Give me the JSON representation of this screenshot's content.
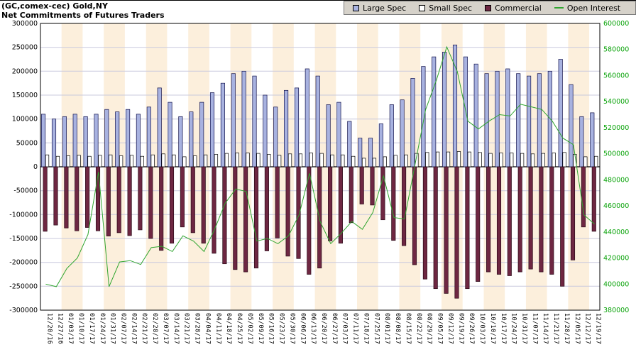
{
  "header": {
    "title": "(GC,comex-cec) Gold,NY",
    "subtitle": "Net Commitments of Futures Traders"
  },
  "legend": {
    "items": [
      {
        "label": "Large Spec",
        "color": "#a8b2e0",
        "type": "box"
      },
      {
        "label": "Small Spec",
        "color": "#ffffff",
        "type": "box"
      },
      {
        "label": "Commercial",
        "color": "#6e2742",
        "type": "box"
      },
      {
        "label": "Open Interest",
        "color": "#2fa52f",
        "type": "line"
      }
    ]
  },
  "colors": {
    "stripe": "#fcefdc",
    "grid": "#c9c9dd",
    "frame": "#000000",
    "legend_bg": "#d6d2ca",
    "large_spec": "#a8b2e0",
    "small_spec": "#ffffff",
    "commercial": "#6e2742",
    "open_interest": "#2fa52f",
    "right_axis_text": "#0aa30a"
  },
  "chart_data": {
    "type": "bar",
    "title": "(GC,comex-cec) Gold,NY",
    "subtitle": "Net Commitments of Futures Traders",
    "legend_position": "top-right",
    "grid": true,
    "categories": [
      "12/20/16",
      "12/27/16",
      "01/03/17",
      "01/10/17",
      "01/17/17",
      "01/24/17",
      "01/31/17",
      "02/07/17",
      "02/14/17",
      "02/21/17",
      "02/28/17",
      "03/07/17",
      "03/14/17",
      "03/21/17",
      "03/28/17",
      "04/04/17",
      "04/11/17",
      "04/18/17",
      "04/25/17",
      "05/02/17",
      "05/09/17",
      "05/16/17",
      "05/23/17",
      "05/30/17",
      "06/06/17",
      "06/13/17",
      "06/20/17",
      "06/27/17",
      "07/03/17",
      "07/11/17",
      "07/18/17",
      "07/25/17",
      "08/01/17",
      "08/08/17",
      "08/15/17",
      "08/22/17",
      "08/29/17",
      "09/05/17",
      "09/12/17",
      "09/19/17",
      "09/26/17",
      "10/03/17",
      "10/10/17",
      "10/17/17",
      "10/24/17",
      "10/31/17",
      "11/07/17",
      "11/14/17",
      "11/21/17",
      "11/28/17",
      "12/05/17",
      "12/12/17",
      "12/19/17"
    ],
    "series": [
      {
        "name": "Large Spec",
        "type": "bar",
        "axis": "left",
        "color": "#a8b2e0",
        "values": [
          110000,
          100000,
          105000,
          110000,
          105000,
          110000,
          120000,
          115000,
          120000,
          110000,
          125000,
          165000,
          135000,
          105000,
          115000,
          135000,
          155000,
          175000,
          195000,
          200000,
          190000,
          150000,
          125000,
          160000,
          165000,
          205000,
          190000,
          130000,
          135000,
          95000,
          60000,
          60000,
          90000,
          130000,
          140000,
          185000,
          210000,
          230000,
          240000,
          255000,
          230000,
          215000,
          195000,
          200000,
          205000,
          195000,
          190000,
          195000,
          200000,
          225000,
          172000,
          105000,
          113000
        ]
      },
      {
        "name": "Small Spec",
        "type": "bar",
        "axis": "left",
        "color": "#ffffff",
        "values": [
          25000,
          22000,
          23000,
          24000,
          22000,
          24000,
          25000,
          23000,
          24000,
          22000,
          25000,
          27000,
          25000,
          21000,
          23000,
          25000,
          26000,
          28000,
          29000,
          29000,
          28000,
          26000,
          24000,
          27000,
          27000,
          29000,
          28000,
          25000,
          25000,
          22000,
          18000,
          18000,
          21000,
          24000,
          25000,
          28000,
          30000,
          31000,
          31000,
          32000,
          31000,
          30000,
          28000,
          29000,
          29000,
          28000,
          27000,
          28000,
          29000,
          30000,
          26000,
          21000,
          22000
        ]
      },
      {
        "name": "Commercial",
        "type": "bar",
        "axis": "left",
        "color": "#6e2742",
        "values": [
          -135000,
          -122000,
          -128000,
          -134000,
          -127000,
          -134000,
          -145000,
          -138000,
          -144000,
          -132000,
          -150000,
          -175000,
          -160000,
          -126000,
          -138000,
          -160000,
          -181000,
          -203000,
          -215000,
          -220000,
          -212000,
          -176000,
          -149000,
          -187000,
          -192000,
          -225000,
          -212000,
          -155000,
          -160000,
          -117000,
          -78000,
          -80000,
          -111000,
          -154000,
          -165000,
          -205000,
          -235000,
          -255000,
          -265000,
          -275000,
          -255000,
          -240000,
          -220000,
          -225000,
          -228000,
          -220000,
          -214000,
          -220000,
          -225000,
          -250000,
          -195000,
          -126000,
          -135000
        ]
      },
      {
        "name": "Open Interest",
        "type": "line",
        "axis": "right",
        "color": "#2fa52f",
        "values": [
          400000,
          398000,
          412000,
          420000,
          438000,
          486000,
          398000,
          417000,
          418000,
          415000,
          428000,
          429000,
          425000,
          437000,
          433000,
          425000,
          442000,
          462000,
          473000,
          471000,
          433000,
          435000,
          431000,
          437000,
          453000,
          485000,
          448000,
          431000,
          439000,
          448000,
          442000,
          455000,
          483000,
          451000,
          450000,
          492000,
          534000,
          556000,
          582000,
          563000,
          525000,
          519000,
          525000,
          530000,
          529000,
          538000,
          536000,
          534000,
          525000,
          512000,
          507000,
          453000,
          446000
        ]
      }
    ],
    "left_axis": {
      "range": [
        -300000,
        300000
      ],
      "tick_step": 50000,
      "ticks": [
        "300000",
        "250000",
        "200000",
        "150000",
        "100000",
        "50000",
        "0",
        "-50000",
        "-100000",
        "-150000",
        "-200000",
        "-250000",
        "-300000"
      ]
    },
    "right_axis": {
      "range": [
        380000,
        600000
      ],
      "tick_step": 20000,
      "text_color": "#0aa30a",
      "ticks": [
        "600000",
        "580000",
        "560000",
        "540000",
        "520000",
        "500000",
        "480000",
        "460000",
        "440000",
        "420000",
        "400000",
        "380000"
      ]
    }
  }
}
